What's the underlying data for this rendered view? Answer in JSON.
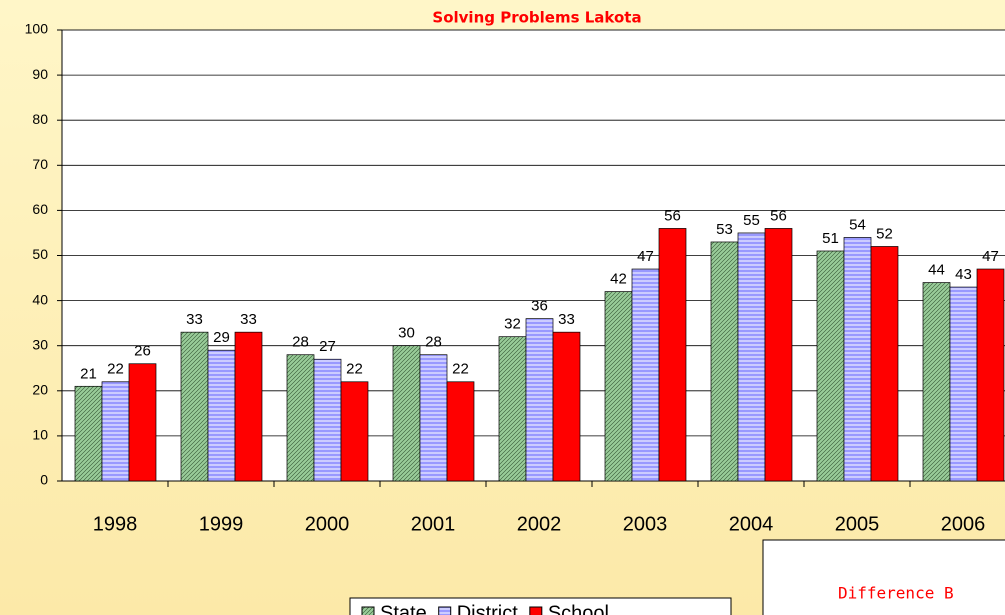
{
  "chart_data": {
    "type": "bar",
    "title": "Solving Problems Lakota",
    "categories": [
      "1998",
      "1999",
      "2000",
      "2001",
      "2002",
      "2003",
      "2004",
      "2005",
      "2006"
    ],
    "series": [
      {
        "name": "State",
        "color": "#99cc99",
        "values": [
          21,
          33,
          28,
          30,
          32,
          42,
          53,
          51,
          44
        ]
      },
      {
        "name": "District",
        "color": "#9999ff",
        "values": [
          22,
          29,
          27,
          28,
          36,
          47,
          55,
          54,
          43
        ]
      },
      {
        "name": "School",
        "color": "#ff0000",
        "values": [
          26,
          33,
          22,
          22,
          33,
          56,
          56,
          52,
          47
        ]
      }
    ],
    "ylim": [
      0,
      100
    ],
    "yticks": [
      0,
      10,
      20,
      30,
      40,
      50,
      60,
      70,
      80,
      90,
      100
    ],
    "grid": true,
    "legend": "bottom",
    "annotation": "Difference B"
  }
}
